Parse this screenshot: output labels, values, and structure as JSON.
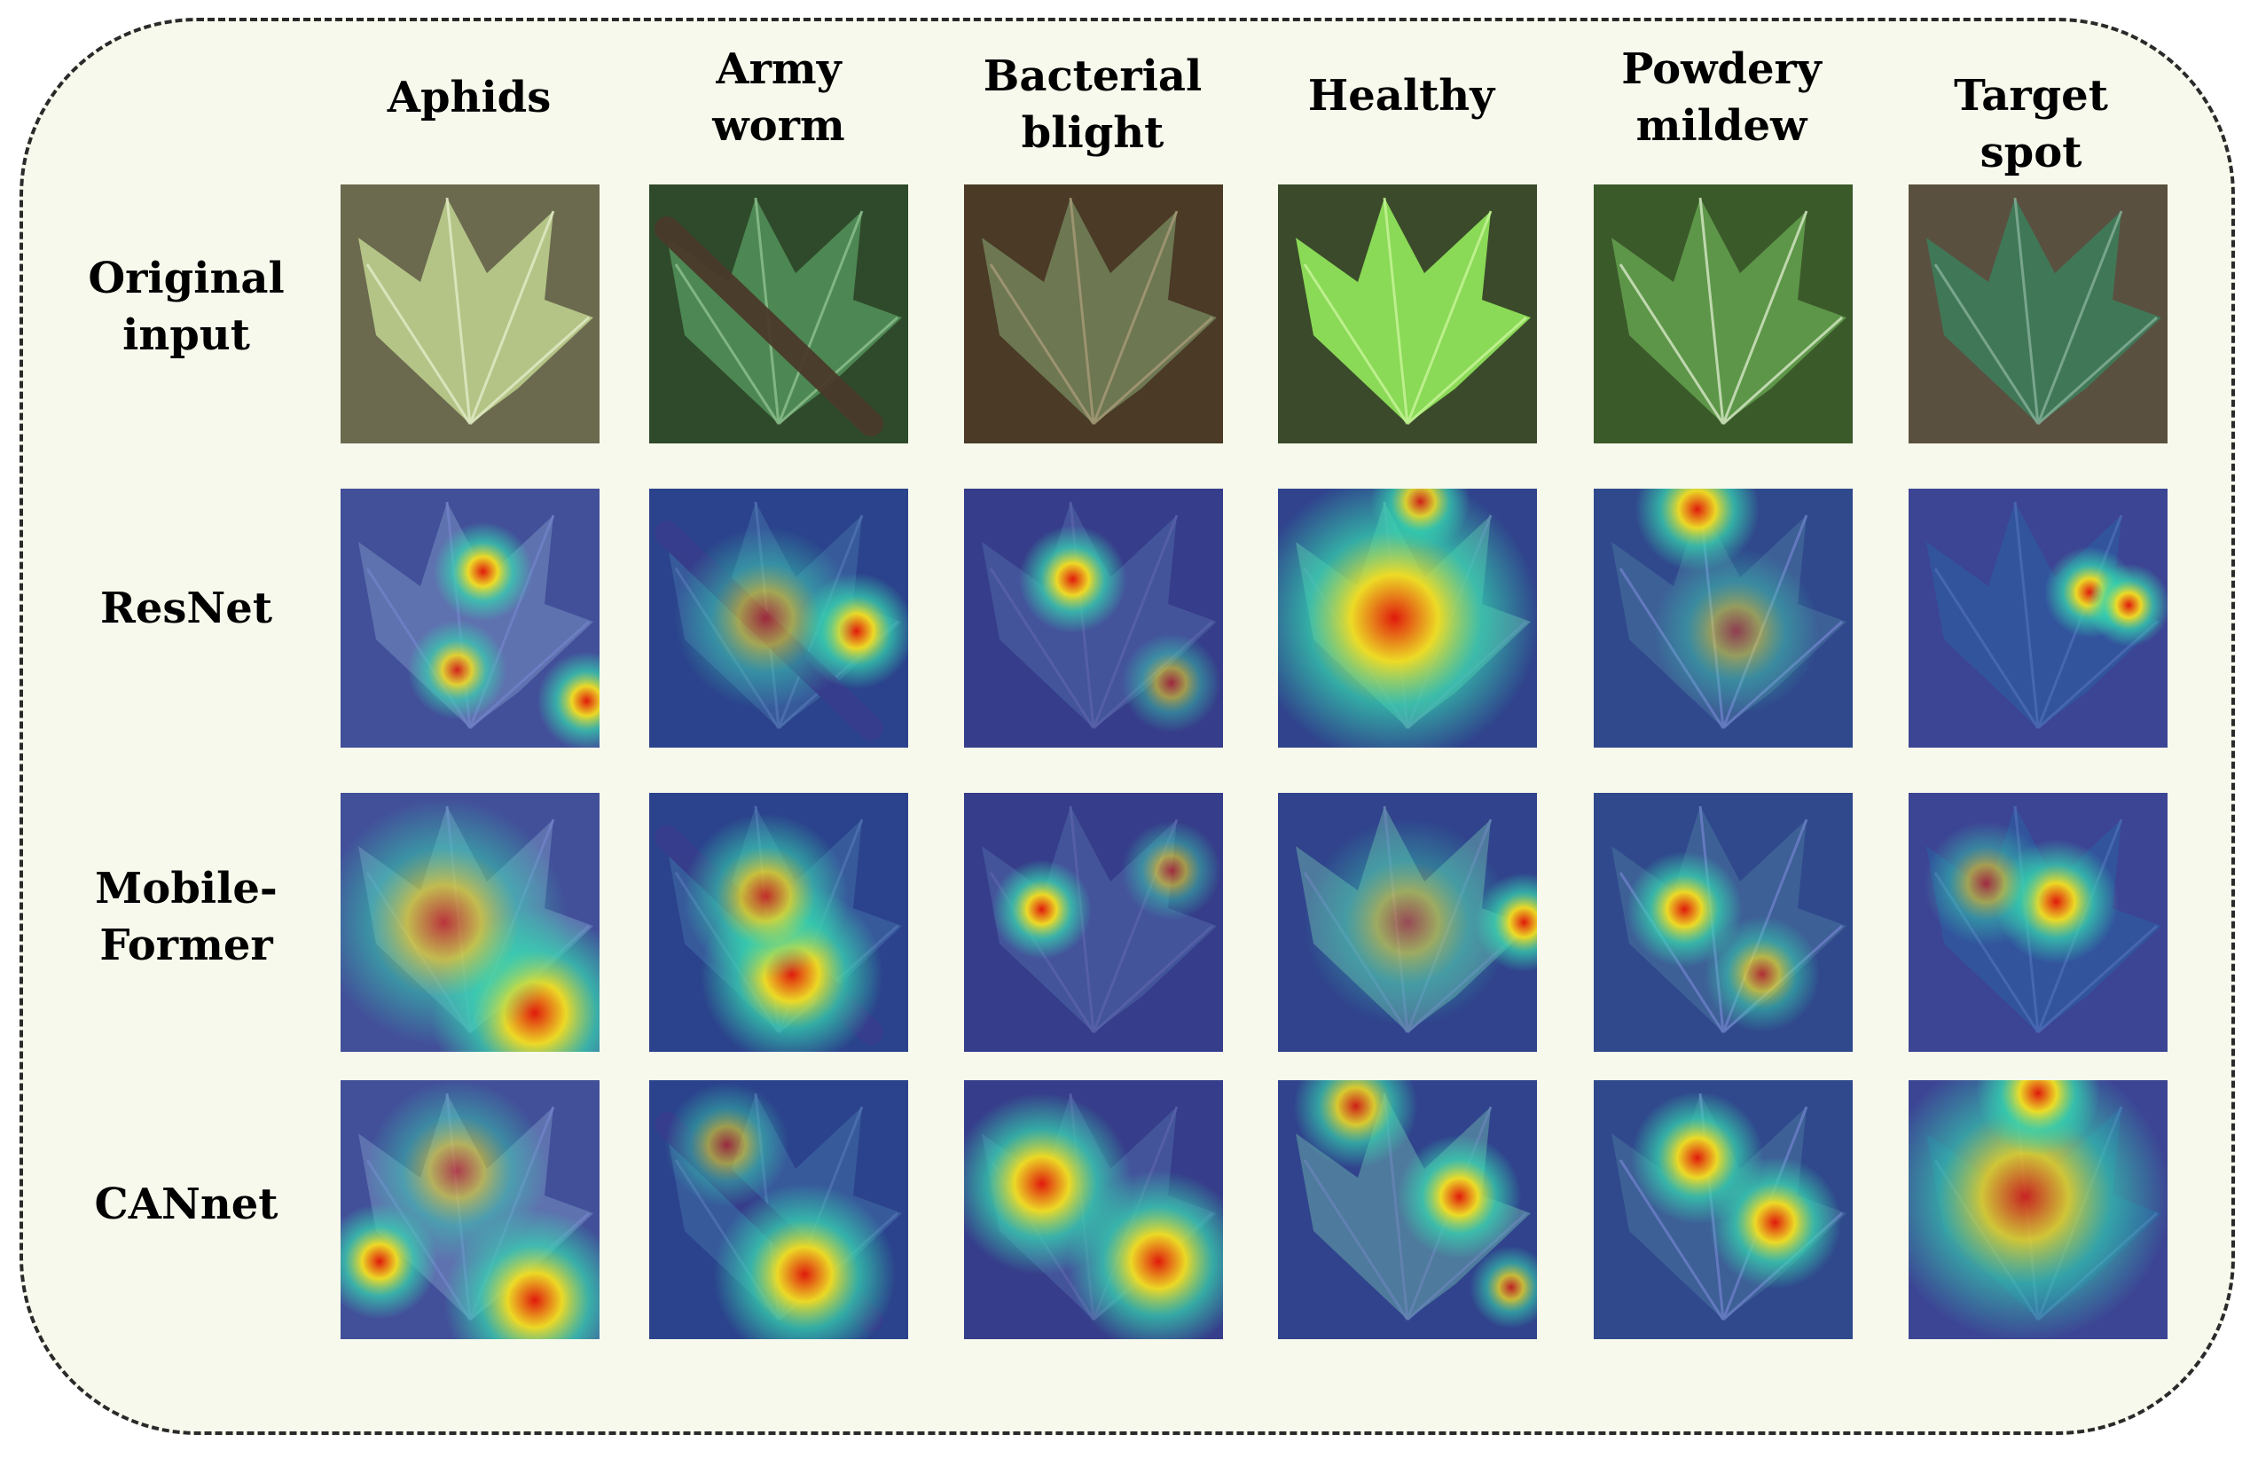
{
  "columns": [
    {
      "label": "Aphids"
    },
    {
      "label": "Army\nworm"
    },
    {
      "label": "Bacterial\nblight"
    },
    {
      "label": "Healthy"
    },
    {
      "label": "Powdery\nmildew"
    },
    {
      "label": "Target spot"
    }
  ],
  "rows": [
    {
      "label": "Original\ninput"
    },
    {
      "label": "ResNet"
    },
    {
      "label": "Mobile-\nFormer"
    },
    {
      "label": "CANnet"
    }
  ],
  "colors": {
    "panel_background": "#f6f9ec",
    "heatmap_cold": "#2a3fc8",
    "heatmap_hot": "#e81e10"
  }
}
